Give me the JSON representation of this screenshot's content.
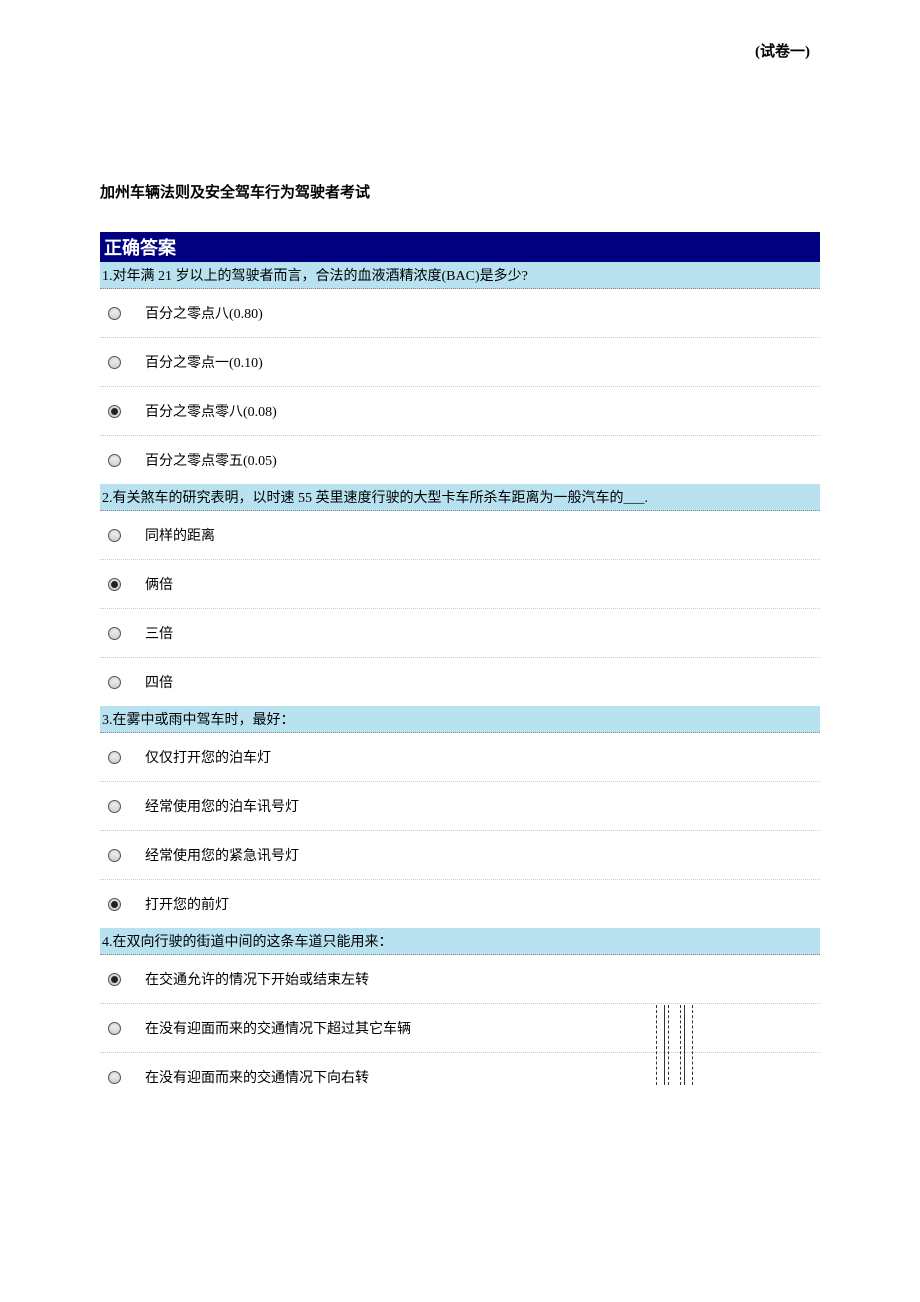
{
  "top_label": "(试卷一)",
  "page_title": "加州车辆法则及安全驾车行为驾驶者考试",
  "answer_header": "正确答案",
  "colors": {
    "header_bg": "#000080",
    "header_text": "#ffffff",
    "question_bg": "#b8e2f0",
    "page_bg": "#ffffff"
  },
  "questions": [
    {
      "number": "1",
      "text": "1.对年满 21 岁以上的驾驶者而言，合法的血液酒精浓度(BAC)是多少?",
      "options": [
        {
          "text": "百分之零点八(0.80)",
          "selected": false
        },
        {
          "text": "百分之零点一(0.10)",
          "selected": false
        },
        {
          "text": "百分之零点零八(0.08)",
          "selected": true
        },
        {
          "text": "百分之零点零五(0.05)",
          "selected": false
        }
      ]
    },
    {
      "number": "2",
      "text": "2.有关煞车的研究表明，以时速 55 英里速度行驶的大型卡车所杀车距离为一般汽车的___.",
      "options": [
        {
          "text": "同样的距离",
          "selected": false
        },
        {
          "text": "俩倍",
          "selected": true
        },
        {
          "text": "三倍",
          "selected": false
        },
        {
          "text": "四倍",
          "selected": false
        }
      ]
    },
    {
      "number": "3",
      "text": "3.在雾中或雨中驾车时，最好：",
      "options": [
        {
          "text": "仅仅打开您的泊车灯",
          "selected": false
        },
        {
          "text": "经常使用您的泊车讯号灯",
          "selected": false
        },
        {
          "text": "经常使用您的紧急讯号灯",
          "selected": false
        },
        {
          "text": "打开您的前灯",
          "selected": true
        }
      ]
    },
    {
      "number": "4",
      "text": "4.在双向行驶的街道中间的这条车道只能用来：",
      "has_diagram": true,
      "options": [
        {
          "text": "在交通允许的情况下开始或结束左转",
          "selected": true
        },
        {
          "text": "在没有迎面而来的交通情况下超过其它车辆",
          "selected": false
        },
        {
          "text": "在没有迎面而来的交通情况下向右转",
          "selected": false
        }
      ]
    }
  ]
}
